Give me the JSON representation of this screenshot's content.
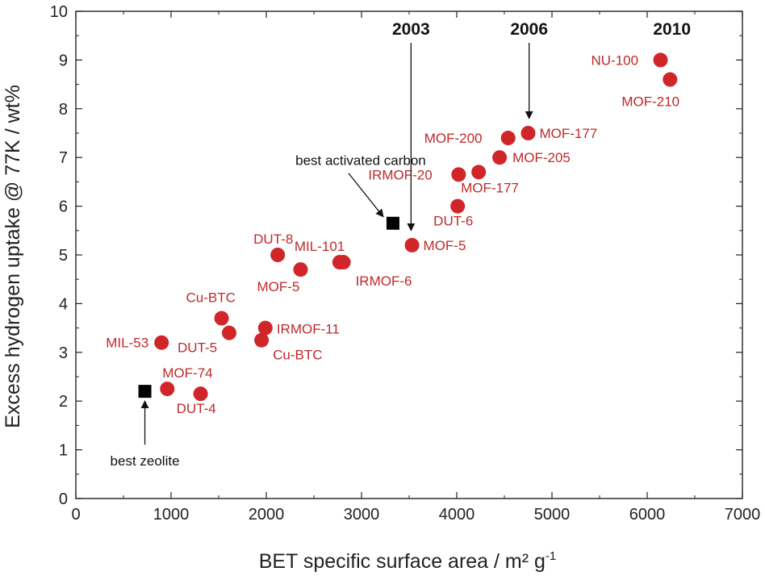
{
  "chart_data": {
    "type": "scatter",
    "xlabel": "BET specific surface area / m² g",
    "xlabel_sup": "-1",
    "ylabel": "Excess hydrogen uptake @ 77K / wt%",
    "xlim": [
      0,
      7000
    ],
    "ylim": [
      0,
      10
    ],
    "x_ticks": [
      "0",
      "1000",
      "2000",
      "3000",
      "4000",
      "5000",
      "6000",
      "7000"
    ],
    "y_ticks": [
      "0",
      "1",
      "2",
      "3",
      "4",
      "5",
      "6",
      "7",
      "8",
      "9",
      "10"
    ],
    "grid": false,
    "colors": {
      "mof": "#d0262a",
      "reference": "#000000",
      "mof_label": "#c0282a"
    },
    "series": [
      {
        "marker": "circle",
        "points": [
          {
            "label": "MIL-53",
            "x": 900,
            "y": 3.2
          },
          {
            "label": "MOF-74",
            "x": 960,
            "y": 2.25
          },
          {
            "label": "DUT-4",
            "x": 1310,
            "y": 2.15
          },
          {
            "label": "Cu-BTC",
            "x": 1530,
            "y": 3.7
          },
          {
            "label": "DUT-5",
            "x": 1610,
            "y": 3.4
          },
          {
            "label": "Cu-BTC",
            "x": 1950,
            "y": 3.25
          },
          {
            "label": "IRMOF-11",
            "x": 1990,
            "y": 3.5
          },
          {
            "label": "DUT-8",
            "x": 2120,
            "y": 5.0
          },
          {
            "label": "MOF-5",
            "x": 2360,
            "y": 4.7
          },
          {
            "label": "MIL-101",
            "x": 2770,
            "y": 4.85
          },
          {
            "label": "IRMOF-6",
            "x": 2810,
            "y": 4.85
          },
          {
            "label": "MOF-5",
            "x": 3530,
            "y": 5.2
          },
          {
            "label": "DUT-6",
            "x": 4010,
            "y": 6.0
          },
          {
            "label": "IRMOF-20",
            "x": 4020,
            "y": 6.65
          },
          {
            "label": "MOF-177",
            "x": 4230,
            "y": 6.7
          },
          {
            "label": "MOF-205",
            "x": 4450,
            "y": 7.0
          },
          {
            "label": "MOF-200",
            "x": 4540,
            "y": 7.4
          },
          {
            "label": "MOF-177",
            "x": 4750,
            "y": 7.5
          },
          {
            "label": "NU-100",
            "x": 6140,
            "y": 9.0
          },
          {
            "label": "MOF-210",
            "x": 6240,
            "y": 8.6
          }
        ]
      },
      {
        "marker": "square",
        "points": [
          {
            "label": "best zeolite",
            "x": 725,
            "y": 2.2
          },
          {
            "label": "best activated carbon",
            "x": 3330,
            "y": 5.65
          }
        ]
      }
    ],
    "annotations": [
      {
        "text": "2003",
        "x": 3520,
        "y_text": 9.75,
        "arrow_to_y": 5.5
      },
      {
        "text": "2006",
        "x": 4760,
        "y_text": 9.75,
        "arrow_to_y": 7.8
      },
      {
        "text": "2010",
        "x": 6260,
        "y_text": 9.75,
        "arrow_to_y": null
      }
    ]
  }
}
